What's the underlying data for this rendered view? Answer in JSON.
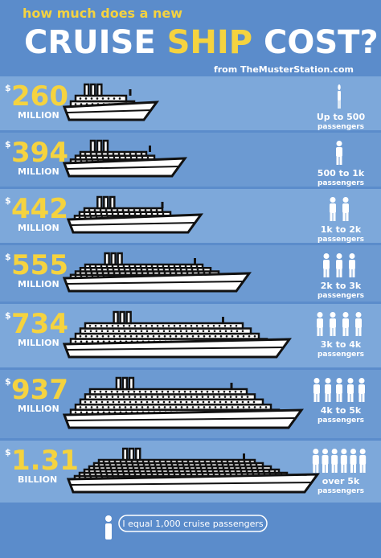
{
  "header": {
    "subtitle": "how much does a new",
    "title_parts": [
      "CRUISE",
      "SHIP",
      "COST?"
    ],
    "source": "from TheMusterStation.com"
  },
  "rows": [
    {
      "currency": "$",
      "price": "260",
      "unit": "MILLION",
      "passengers": "Up to 500",
      "passengers_unit": "passengers",
      "icons": 0.5
    },
    {
      "currency": "$",
      "price": "394",
      "unit": "MILLION",
      "passengers": "500 to 1k",
      "passengers_unit": "passengers",
      "icons": 1
    },
    {
      "currency": "$",
      "price": "442",
      "unit": "MILLION",
      "passengers": "1k to 2k",
      "passengers_unit": "passengers",
      "icons": 2
    },
    {
      "currency": "$",
      "price": "555",
      "unit": "MILLION",
      "passengers": "2k to 3k",
      "passengers_unit": "passengers",
      "icons": 3
    },
    {
      "currency": "$",
      "price": "734",
      "unit": "MILLION",
      "passengers": "3k to 4k",
      "passengers_unit": "passengers",
      "icons": 4
    },
    {
      "currency": "$",
      "price": "937",
      "unit": "MILLION",
      "passengers": "4k to 5k",
      "passengers_unit": "passengers",
      "icons": 5
    },
    {
      "currency": "$",
      "price": "1.31",
      "unit": "BILLION",
      "passengers": "over 5k",
      "passengers_unit": "passengers",
      "icons": 6
    }
  ],
  "footer": {
    "legend": "I equal 1,000 cruise passengers"
  }
}
